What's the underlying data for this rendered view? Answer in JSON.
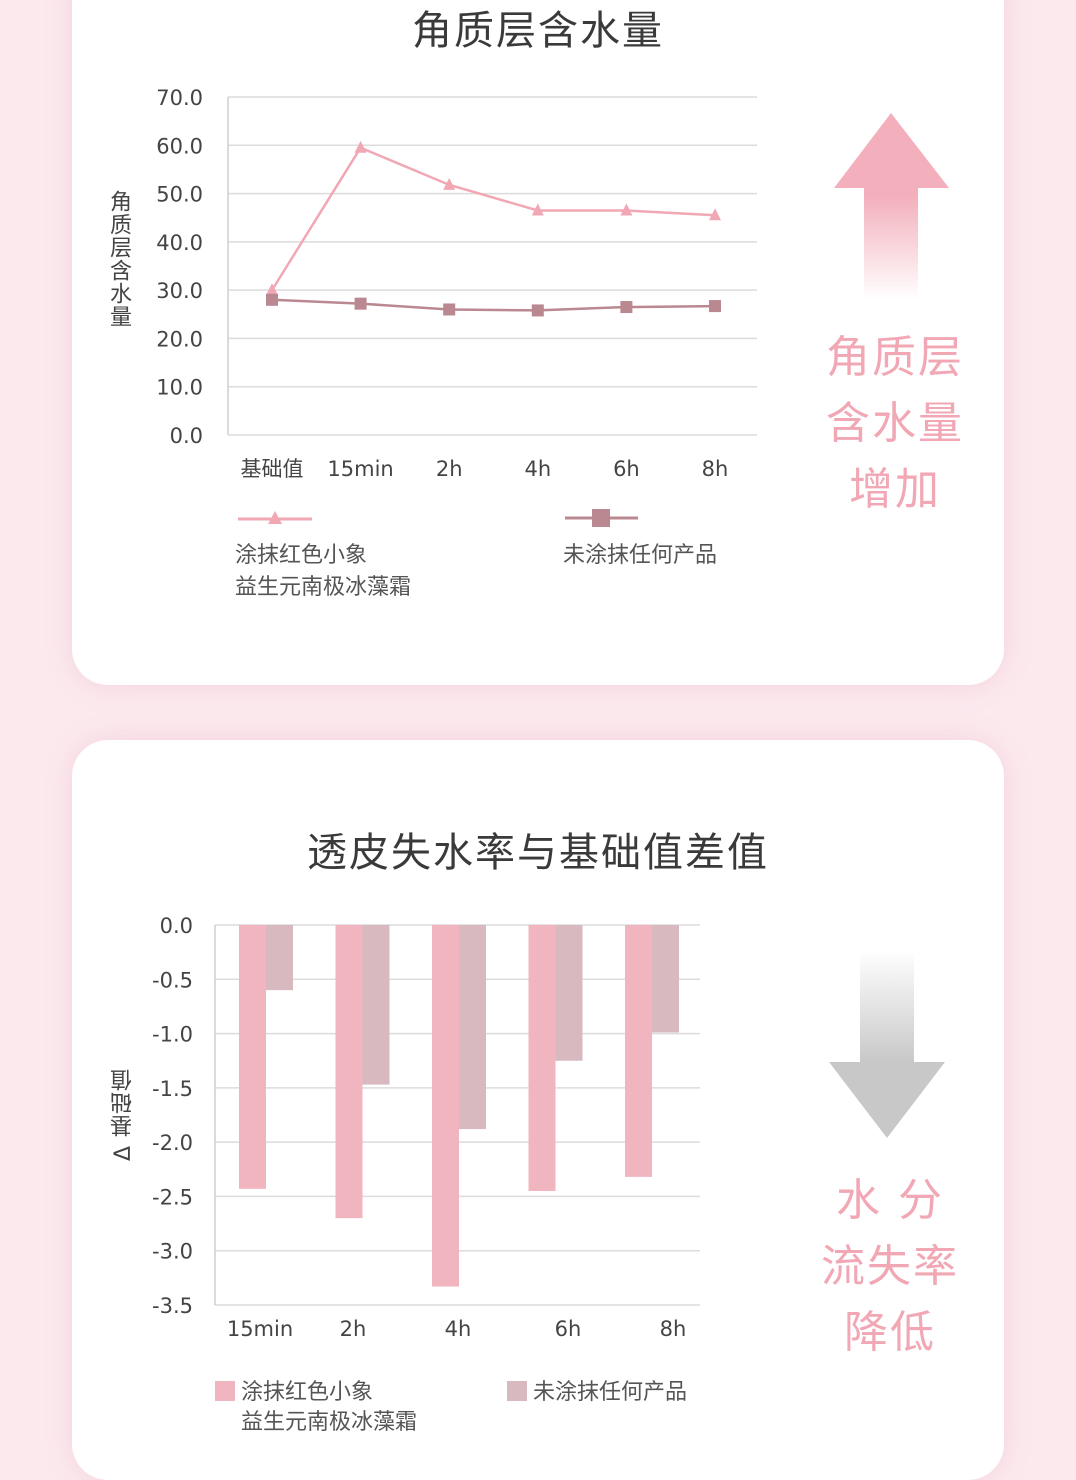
{
  "page": {
    "chart1_side_text": [
      "角质层",
      "含水量",
      "增加"
    ],
    "chart2_side_text": [
      "水 分",
      "流失率",
      "降低"
    ],
    "colors": {
      "background": "#fbe9ee",
      "product_line": "#f1a7b4",
      "control_line": "#b98890",
      "product_bar": "#f1b5bf",
      "control_bar": "#d9b9c0",
      "arrow_up": "#f3b0bc",
      "arrow_down": "#c8c8c8"
    },
    "icons": [
      "arrow-up-icon",
      "arrow-down-icon",
      "triangle-marker-icon",
      "square-marker-icon"
    ]
  },
  "chart_data": [
    {
      "type": "line",
      "title": "角质层含水量",
      "ylabel": "角质层含水量",
      "xlabel": "",
      "categories": [
        "基础值",
        "15min",
        "2h",
        "4h",
        "6h",
        "8h"
      ],
      "ylim": [
        0,
        70
      ],
      "yticks": [
        "70.0",
        "60.0",
        "50.0",
        "40.0",
        "30.0",
        "20.0",
        "10.0",
        "0.0"
      ],
      "grid": true,
      "legend_position": "bottom",
      "series": [
        {
          "name": "涂抹红色小象 益生元南极冰藻霜",
          "name_lines": [
            "涂抹红色小象",
            "益生元南极冰藻霜"
          ],
          "marker": "triangle",
          "values": [
            30.0,
            59.5,
            51.8,
            46.5,
            46.5,
            45.5
          ]
        },
        {
          "name": "未涂抹任何产品",
          "name_lines": [
            "未涂抹任何产品"
          ],
          "marker": "square",
          "values": [
            28.0,
            27.2,
            26.0,
            25.8,
            26.5,
            26.7
          ]
        }
      ]
    },
    {
      "type": "bar",
      "title": "透皮失水率与基础值差值",
      "ylabel": "Δ 基础值",
      "xlabel": "",
      "categories": [
        "15min",
        "2h",
        "4h",
        "6h",
        "8h"
      ],
      "ylim": [
        -3.5,
        0
      ],
      "yticks": [
        "0.0",
        "-0.5",
        "-1.0",
        "-1.5",
        "-2.0",
        "-2.5",
        "-3.0",
        "-3.5"
      ],
      "grid": true,
      "legend_position": "bottom",
      "series": [
        {
          "name": "涂抹红色小象 益生元南极冰藻霜",
          "name_lines": [
            "涂抹红色小象",
            "益生元南极冰藻霜"
          ],
          "values": [
            -2.43,
            -2.7,
            -3.33,
            -2.45,
            -2.32
          ]
        },
        {
          "name": "未涂抹任何产品",
          "name_lines": [
            "未涂抹任何产品"
          ],
          "values": [
            -0.6,
            -1.47,
            -1.88,
            -1.25,
            -0.99
          ]
        }
      ]
    }
  ]
}
